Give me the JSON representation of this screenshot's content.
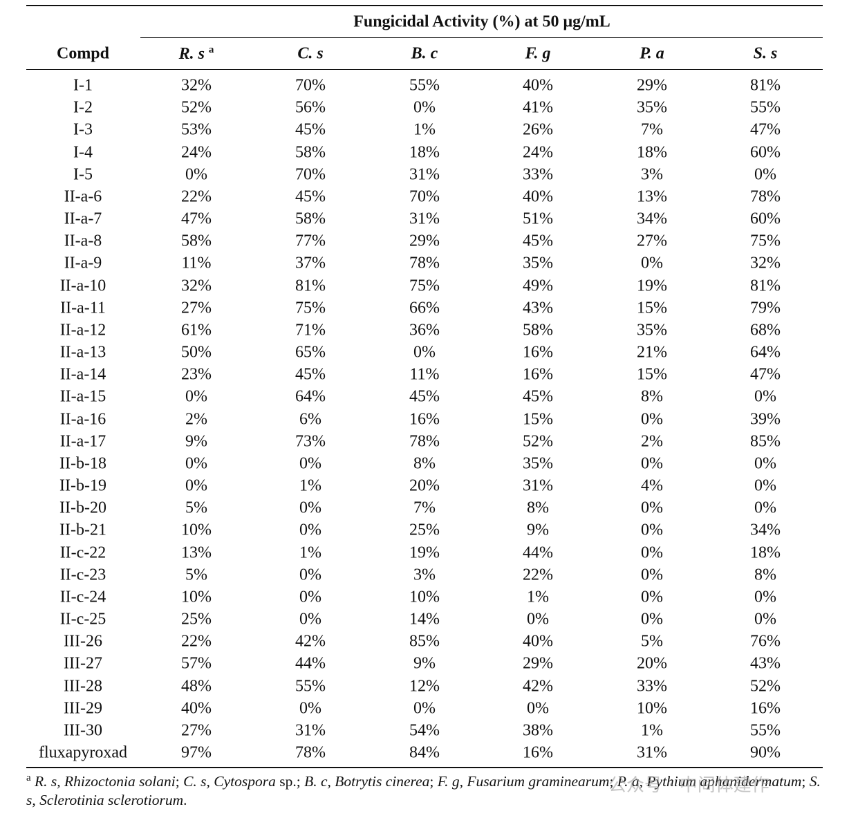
{
  "header": {
    "group_title": "Fungicidal Activity (%) at 50 μg/mL",
    "compd": "Compd",
    "note_marker": "a",
    "columns": [
      "R. s",
      "C. s",
      "B. c",
      "F. g",
      "P. a",
      "S. s"
    ]
  },
  "table": {
    "rows": [
      [
        "I-1",
        "32%",
        "70%",
        "55%",
        "40%",
        "29%",
        "81%"
      ],
      [
        "I-2",
        "52%",
        "56%",
        "0%",
        "41%",
        "35%",
        "55%"
      ],
      [
        "I-3",
        "53%",
        "45%",
        "1%",
        "26%",
        "7%",
        "47%"
      ],
      [
        "I-4",
        "24%",
        "58%",
        "18%",
        "24%",
        "18%",
        "60%"
      ],
      [
        "I-5",
        "0%",
        "70%",
        "31%",
        "33%",
        "3%",
        "0%"
      ],
      [
        "II-a-6",
        "22%",
        "45%",
        "70%",
        "40%",
        "13%",
        "78%"
      ],
      [
        "II-a-7",
        "47%",
        "58%",
        "31%",
        "51%",
        "34%",
        "60%"
      ],
      [
        "II-a-8",
        "58%",
        "77%",
        "29%",
        "45%",
        "27%",
        "75%"
      ],
      [
        "II-a-9",
        "11%",
        "37%",
        "78%",
        "35%",
        "0%",
        "32%"
      ],
      [
        "II-a-10",
        "32%",
        "81%",
        "75%",
        "49%",
        "19%",
        "81%"
      ],
      [
        "II-a-11",
        "27%",
        "75%",
        "66%",
        "43%",
        "15%",
        "79%"
      ],
      [
        "II-a-12",
        "61%",
        "71%",
        "36%",
        "58%",
        "35%",
        "68%"
      ],
      [
        "II-a-13",
        "50%",
        "65%",
        "0%",
        "16%",
        "21%",
        "64%"
      ],
      [
        "II-a-14",
        "23%",
        "45%",
        "11%",
        "16%",
        "15%",
        "47%"
      ],
      [
        "II-a-15",
        "0%",
        "64%",
        "45%",
        "45%",
        "8%",
        "0%"
      ],
      [
        "II-a-16",
        "2%",
        "6%",
        "16%",
        "15%",
        "0%",
        "39%"
      ],
      [
        "II-a-17",
        "9%",
        "73%",
        "78%",
        "52%",
        "2%",
        "85%"
      ],
      [
        "II-b-18",
        "0%",
        "0%",
        "8%",
        "35%",
        "0%",
        "0%"
      ],
      [
        "II-b-19",
        "0%",
        "1%",
        "20%",
        "31%",
        "4%",
        "0%"
      ],
      [
        "II-b-20",
        "5%",
        "0%",
        "7%",
        "8%",
        "0%",
        "0%"
      ],
      [
        "II-b-21",
        "10%",
        "0%",
        "25%",
        "9%",
        "0%",
        "34%"
      ],
      [
        "II-c-22",
        "13%",
        "1%",
        "19%",
        "44%",
        "0%",
        "18%"
      ],
      [
        "II-c-23",
        "5%",
        "0%",
        "3%",
        "22%",
        "0%",
        "8%"
      ],
      [
        "II-c-24",
        "10%",
        "0%",
        "10%",
        "1%",
        "0%",
        "0%"
      ],
      [
        "II-c-25",
        "25%",
        "0%",
        "14%",
        "0%",
        "0%",
        "0%"
      ],
      [
        "III-26",
        "22%",
        "42%",
        "85%",
        "40%",
        "5%",
        "76%"
      ],
      [
        "III-27",
        "57%",
        "44%",
        "9%",
        "29%",
        "20%",
        "43%"
      ],
      [
        "III-28",
        "48%",
        "55%",
        "12%",
        "42%",
        "33%",
        "52%"
      ],
      [
        "III-29",
        "40%",
        "0%",
        "0%",
        "0%",
        "10%",
        "16%"
      ],
      [
        "III-30",
        "27%",
        "31%",
        "54%",
        "38%",
        "1%",
        "55%"
      ],
      [
        "fluxapyroxad",
        "97%",
        "78%",
        "84%",
        "16%",
        "31%",
        "90%"
      ]
    ]
  },
  "footnote": {
    "marker": "a",
    "parts": [
      "R. s, Rhizoctonia solani",
      "; ",
      "C. s, Cytospora",
      " sp.; ",
      "B. c, Botrytis cinerea",
      "; ",
      "F. g, Fusarium graminearum",
      "; ",
      "P. a, Pythium aphanidermatum",
      "; ",
      "S. s, Sclerotinia sclerotiorum",
      "."
    ]
  },
  "watermark": "公众号 · 中间体建作"
}
